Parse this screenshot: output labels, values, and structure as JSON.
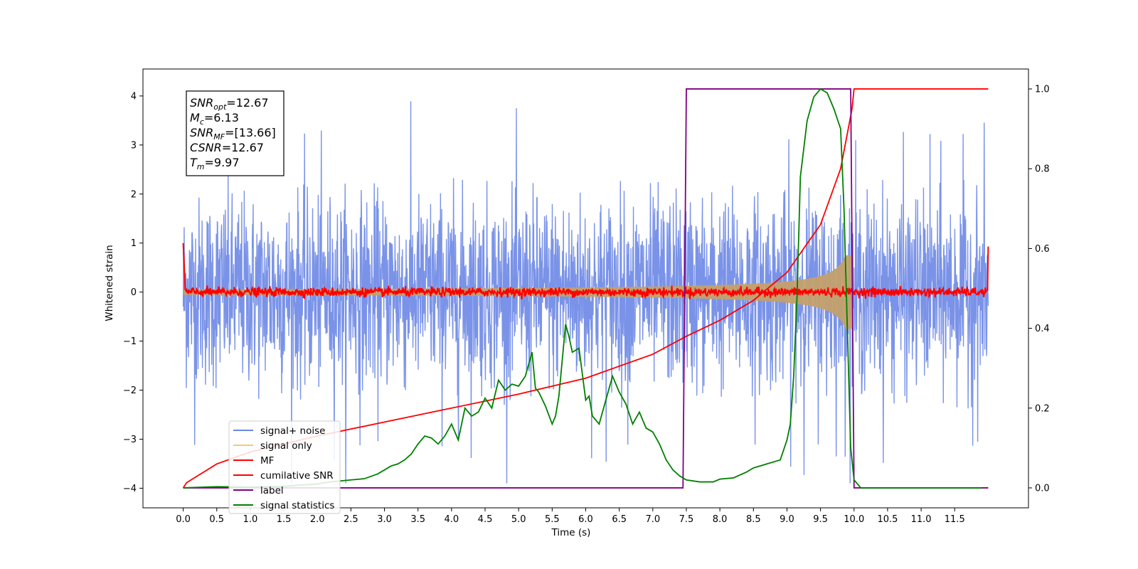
{
  "chart_data": {
    "type": "line",
    "xlabel": "Time (s)",
    "ylabel": "Whitened strain",
    "xlim": [
      -0.6,
      12.6
    ],
    "ylim_left": [
      -4.4,
      4.55
    ],
    "ylim_right": [
      -0.05,
      1.05
    ],
    "x_ticks": [
      "0.0",
      "0.5",
      "1.0",
      "1.5",
      "2.0",
      "2.5",
      "3.0",
      "3.5",
      "4.0",
      "4.5",
      "5.0",
      "5.5",
      "6.0",
      "6.5",
      "7.0",
      "7.5",
      "8.0",
      "8.5",
      "9.0",
      "9.5",
      "10.0",
      "10.5",
      "11.0",
      "11.5"
    ],
    "y_ticks_left": [
      "−4",
      "−3",
      "−2",
      "−1",
      "0",
      "1",
      "2",
      "3",
      "4"
    ],
    "y_ticks_right": [
      "0.0",
      "0.2",
      "0.4",
      "0.6",
      "0.8",
      "1.0"
    ],
    "grid": false,
    "legend_position": "lower-left",
    "annotation": {
      "lines": [
        {
          "symbol": "SNR",
          "sub": "opt",
          "value": "=12.67"
        },
        {
          "symbol": "M",
          "sub": "c",
          "value": "=6.13"
        },
        {
          "symbol": "SNR",
          "sub": "MF",
          "value": "=[13.66]"
        },
        {
          "symbol": "CSNR",
          "sub": "",
          "value": "=12.67"
        },
        {
          "symbol": "T",
          "sub": "m",
          "value": "=9.97"
        }
      ]
    },
    "series": [
      {
        "name": "signal+ noise",
        "color": "#6b87e6",
        "axis": "left",
        "description": "noisy time series, amplitude about ±2 with spikes to ±4, t from 0 to 12"
      },
      {
        "name": "signal only",
        "color": "#f7c873",
        "axis": "left",
        "description": "chirp envelope growing from ~±0.05 at t=0 to ~±0.75 at t=9.97"
      },
      {
        "name": "MF",
        "color": "#ff0000",
        "axis": "left",
        "description": "matched-filter output near 0, ~±0.1 jitter, 1.0 at both ends"
      },
      {
        "name": "cumilative SNR",
        "color": "#ff0000",
        "axis": "right",
        "x": [
          0.0,
          0.05,
          0.5,
          1.0,
          2.0,
          3.0,
          4.0,
          5.0,
          6.0,
          7.0,
          7.5,
          8.0,
          8.5,
          9.0,
          9.5,
          9.8,
          9.97,
          10.0,
          12.0
        ],
        "y": [
          0.0,
          0.013,
          0.06,
          0.09,
          0.13,
          0.165,
          0.2,
          0.235,
          0.275,
          0.335,
          0.38,
          0.42,
          0.47,
          0.54,
          0.66,
          0.8,
          0.95,
          1.0,
          1.0
        ]
      },
      {
        "name": "label",
        "color": "#800080",
        "axis": "right",
        "x": [
          0.0,
          7.45,
          7.5,
          9.95,
          10.0,
          12.0
        ],
        "y": [
          0.0,
          0.0,
          1.0,
          1.0,
          0.0,
          0.0
        ]
      },
      {
        "name": "signal statistics",
        "color": "#008000",
        "axis": "right",
        "x": [
          0.0,
          0.5,
          1.0,
          1.5,
          2.0,
          2.2,
          2.5,
          2.7,
          2.9,
          3.0,
          3.1,
          3.2,
          3.3,
          3.4,
          3.5,
          3.6,
          3.7,
          3.8,
          3.9,
          4.0,
          4.1,
          4.2,
          4.3,
          4.4,
          4.5,
          4.6,
          4.7,
          4.8,
          4.9,
          5.0,
          5.1,
          5.2,
          5.25,
          5.3,
          5.4,
          5.5,
          5.55,
          5.6,
          5.7,
          5.75,
          5.8,
          5.9,
          6.0,
          6.05,
          6.1,
          6.2,
          6.3,
          6.4,
          6.5,
          6.6,
          6.7,
          6.8,
          6.9,
          7.0,
          7.1,
          7.2,
          7.3,
          7.4,
          7.5,
          7.7,
          7.9,
          8.0,
          8.2,
          8.4,
          8.5,
          8.6,
          8.7,
          8.9,
          9.0,
          9.05,
          9.1,
          9.15,
          9.2,
          9.3,
          9.4,
          9.5,
          9.6,
          9.7,
          9.8,
          9.85,
          9.9,
          9.95,
          10.0,
          10.1,
          10.5,
          11.0,
          11.5,
          11.9
        ],
        "y": [
          0.0,
          0.003,
          0.002,
          0.004,
          0.01,
          0.015,
          0.02,
          0.023,
          0.035,
          0.045,
          0.055,
          0.06,
          0.07,
          0.085,
          0.11,
          0.13,
          0.125,
          0.11,
          0.13,
          0.16,
          0.12,
          0.2,
          0.18,
          0.19,
          0.225,
          0.2,
          0.27,
          0.245,
          0.26,
          0.255,
          0.28,
          0.34,
          0.25,
          0.24,
          0.205,
          0.16,
          0.18,
          0.23,
          0.41,
          0.38,
          0.34,
          0.35,
          0.22,
          0.23,
          0.18,
          0.16,
          0.22,
          0.28,
          0.24,
          0.21,
          0.16,
          0.19,
          0.15,
          0.14,
          0.11,
          0.07,
          0.045,
          0.03,
          0.02,
          0.015,
          0.015,
          0.022,
          0.025,
          0.04,
          0.05,
          0.055,
          0.06,
          0.07,
          0.12,
          0.16,
          0.28,
          0.48,
          0.78,
          0.92,
          0.98,
          1.0,
          0.99,
          0.95,
          0.9,
          0.7,
          0.4,
          0.1,
          0.02,
          0.0,
          0.0,
          0.0,
          0.0,
          0.0
        ]
      }
    ]
  }
}
